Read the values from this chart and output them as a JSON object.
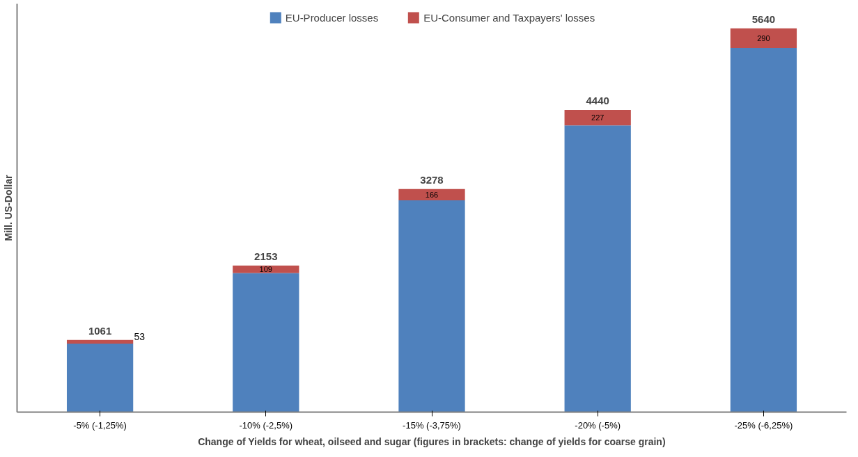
{
  "chart_data": {
    "type": "bar",
    "stacked": true,
    "xlabel": "Change of Yields for wheat, oilseed and sugar (figures in brackets: change of yields for coarse grain)",
    "ylabel": "Mill. US-Dollar",
    "categories": [
      "-5% (-1,25%)",
      "-10% (-2,5%)",
      "-15% (-3,75%)",
      "-20% (-5%)",
      "-25% (-6,25%)"
    ],
    "series": [
      {
        "name": "EU-Producer losses",
        "color": "#4f81bd",
        "values": [
          1008,
          2044,
          3112,
          4213,
          5350
        ]
      },
      {
        "name": "EU-Consumer and Taxpayers' losses",
        "color": "#c0504d",
        "values": [
          53,
          109,
          166,
          227,
          290
        ],
        "value_labels": [
          "53",
          "109",
          "166",
          "227",
          "290"
        ]
      }
    ],
    "totals": [
      "1061",
      "2153",
      "3278",
      "4440",
      "5640"
    ],
    "ylim": [
      0,
      6000
    ],
    "tick_labels": "x",
    "grid": false,
    "legend": "top"
  }
}
